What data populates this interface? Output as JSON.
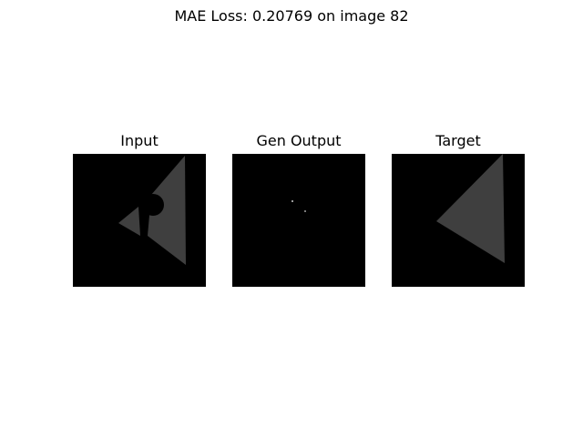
{
  "figure": {
    "suptitle": "MAE Loss: 0.20769 on image 82"
  },
  "panels": [
    {
      "title": "Input"
    },
    {
      "title": "Gen Output"
    },
    {
      "title": "Target"
    }
  ],
  "colors": {
    "background": "#000000",
    "shape": "#3f3f3f",
    "dot": "#9a9a9a"
  }
}
